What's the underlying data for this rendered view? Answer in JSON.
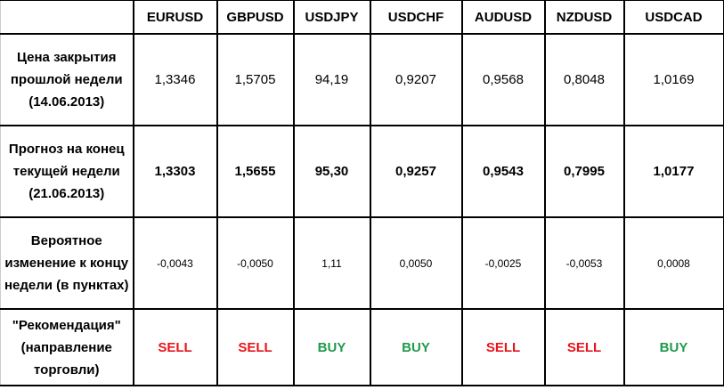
{
  "colors": {
    "sell": "#e8141b",
    "buy": "#1e9a4a"
  },
  "headers": [
    "",
    "EURUSD",
    "GBPUSD",
    "USDJPY",
    "USDCHF",
    "AUDUSD",
    "NZDUSD",
    "USDCAD"
  ],
  "rows": [
    {
      "label": "Цена закрытия прошлой недели (14.06.2013)",
      "values": [
        "1,3346",
        "1,5705",
        "94,19",
        "0,9207",
        "0,9568",
        "0,8048",
        "1,0169"
      ]
    },
    {
      "label": "Прогноз на конец текущей недели (21.06.2013)",
      "values": [
        "1,3303",
        "1,5655",
        "95,30",
        "0,9257",
        "0,9543",
        "0,7995",
        "1,0177"
      ]
    },
    {
      "label": "Вероятное изменение к концу недели (в пунктах)",
      "values": [
        "-0,0043",
        "-0,0050",
        "1,11",
        "0,0050",
        "-0,0025",
        "-0,0053",
        "0,0008"
      ]
    },
    {
      "label": "\"Рекомендация\" (направление торговли)",
      "values": [
        "SELL",
        "SELL",
        "BUY",
        "BUY",
        "SELL",
        "SELL",
        "BUY"
      ]
    }
  ]
}
